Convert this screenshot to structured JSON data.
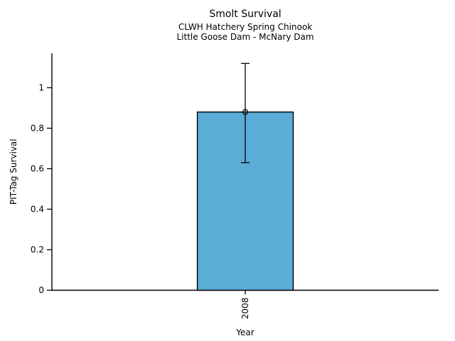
{
  "header": {
    "title": "Smolt Survival",
    "subtitle1": "CLWH Hatchery Spring Chinook",
    "subtitle2": "Little Goose Dam - McNary Dam"
  },
  "chart_data": {
    "type": "bar",
    "title": "Smolt Survival",
    "subtitle": [
      "CLWH Hatchery Spring Chinook",
      "Little Goose Dam - McNary Dam"
    ],
    "xlabel": "Year",
    "ylabel": "PIT-Tag Survival",
    "categories": [
      "2008"
    ],
    "values": [
      0.88
    ],
    "error_low": [
      0.63
    ],
    "error_high": [
      1.12
    ],
    "ylim": [
      0,
      1.17
    ],
    "yticks": [
      0,
      0.2,
      0.4,
      0.6,
      0.8,
      1
    ],
    "ytick_labels": [
      "0",
      "0.2",
      "0.4",
      "0.6",
      "0.8",
      "1"
    ],
    "grid": false,
    "legend_position": "none",
    "marker": "open-circle",
    "bar_color": "#5BACD6",
    "bar_edge_color": "#000000",
    "errorbar_color": "#000000",
    "axis_color": "#000000",
    "background_color": "#FFFFFF"
  }
}
